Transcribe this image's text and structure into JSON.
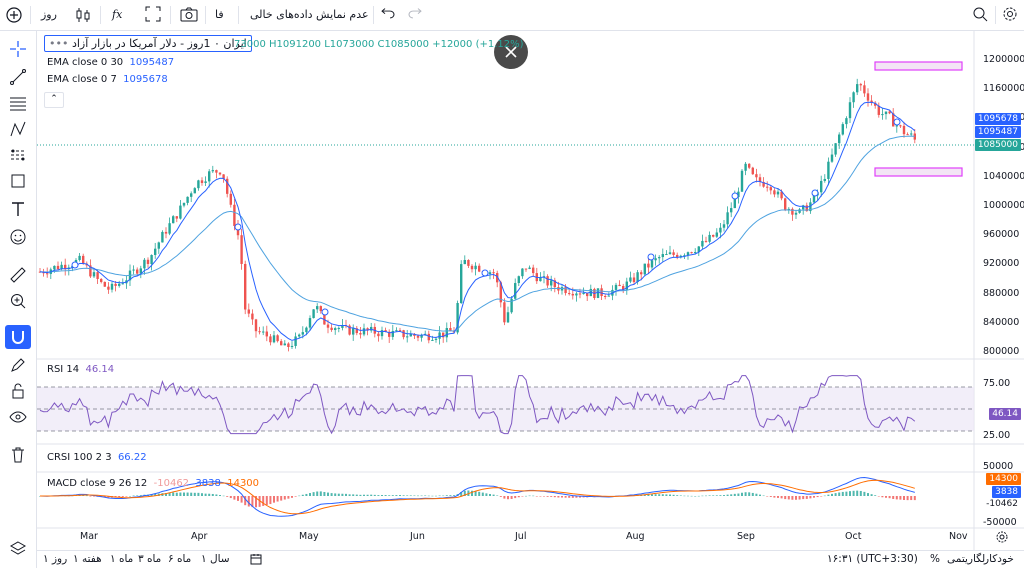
{
  "topbar": {
    "interval": "روز",
    "fx_label": "fx",
    "language": "فا",
    "no_data_toggle": "عدم نمایش داده‌های خالی"
  },
  "legend": {
    "symbol_title": "ایران ۰ 1روز - دلار آمریکا در بازار آزاد",
    "ohlc": "73000 H1091200 L1073000 C1085000 +12000 (+1.12%)",
    "ema30_label": "EMA close 0 30",
    "ema30_value": "1095487",
    "ema7_label": "EMA close 0 7",
    "ema7_value": "1095678",
    "rsi_label": "RSI 14",
    "rsi_value": "46.14",
    "crsi_label": "CRSI 100 2 3",
    "crsi_value": "66.22",
    "macd_label": "MACD close 9 26 12",
    "macd_hist": "-10462",
    "macd_line": "3838",
    "macd_signal": "14300"
  },
  "price_axis": [
    "1200000",
    "1160000",
    "1120000",
    "1080000",
    "1040000",
    "1000000",
    "960000",
    "920000",
    "880000",
    "840000",
    "800000"
  ],
  "price_badges": {
    "ema7": "1095678",
    "ema30": "1095487",
    "last": "1085000"
  },
  "rsi_axis": [
    "75.00",
    "25.00"
  ],
  "rsi_badge": "46.14",
  "macd_axis": [
    "50000",
    "-50000"
  ],
  "macd_badges": {
    "signal": "14300",
    "macd": "3838",
    "hist": "-10462"
  },
  "time_axis": [
    "Mar",
    "Apr",
    "May",
    "Jun",
    "Jul",
    "Aug",
    "Sep",
    "Oct",
    "Nov"
  ],
  "bottombar": {
    "ranges": [
      "۱ روز",
      "۱ هفته",
      "۱ ماه",
      "۳ ماه",
      "۶ ماه",
      "سال ۱"
    ],
    "time": "۱۶:۳۱ (UTC+3:30)",
    "percent": "%",
    "log": "لگاریتمی",
    "auto": "خودکار"
  },
  "colors": {
    "up": "#26a69a",
    "down": "#ef5350",
    "ema7": "#2962ff",
    "ema30": "#4fa3e0",
    "rsi": "#7e57c2",
    "zone": "#e040fb"
  }
}
